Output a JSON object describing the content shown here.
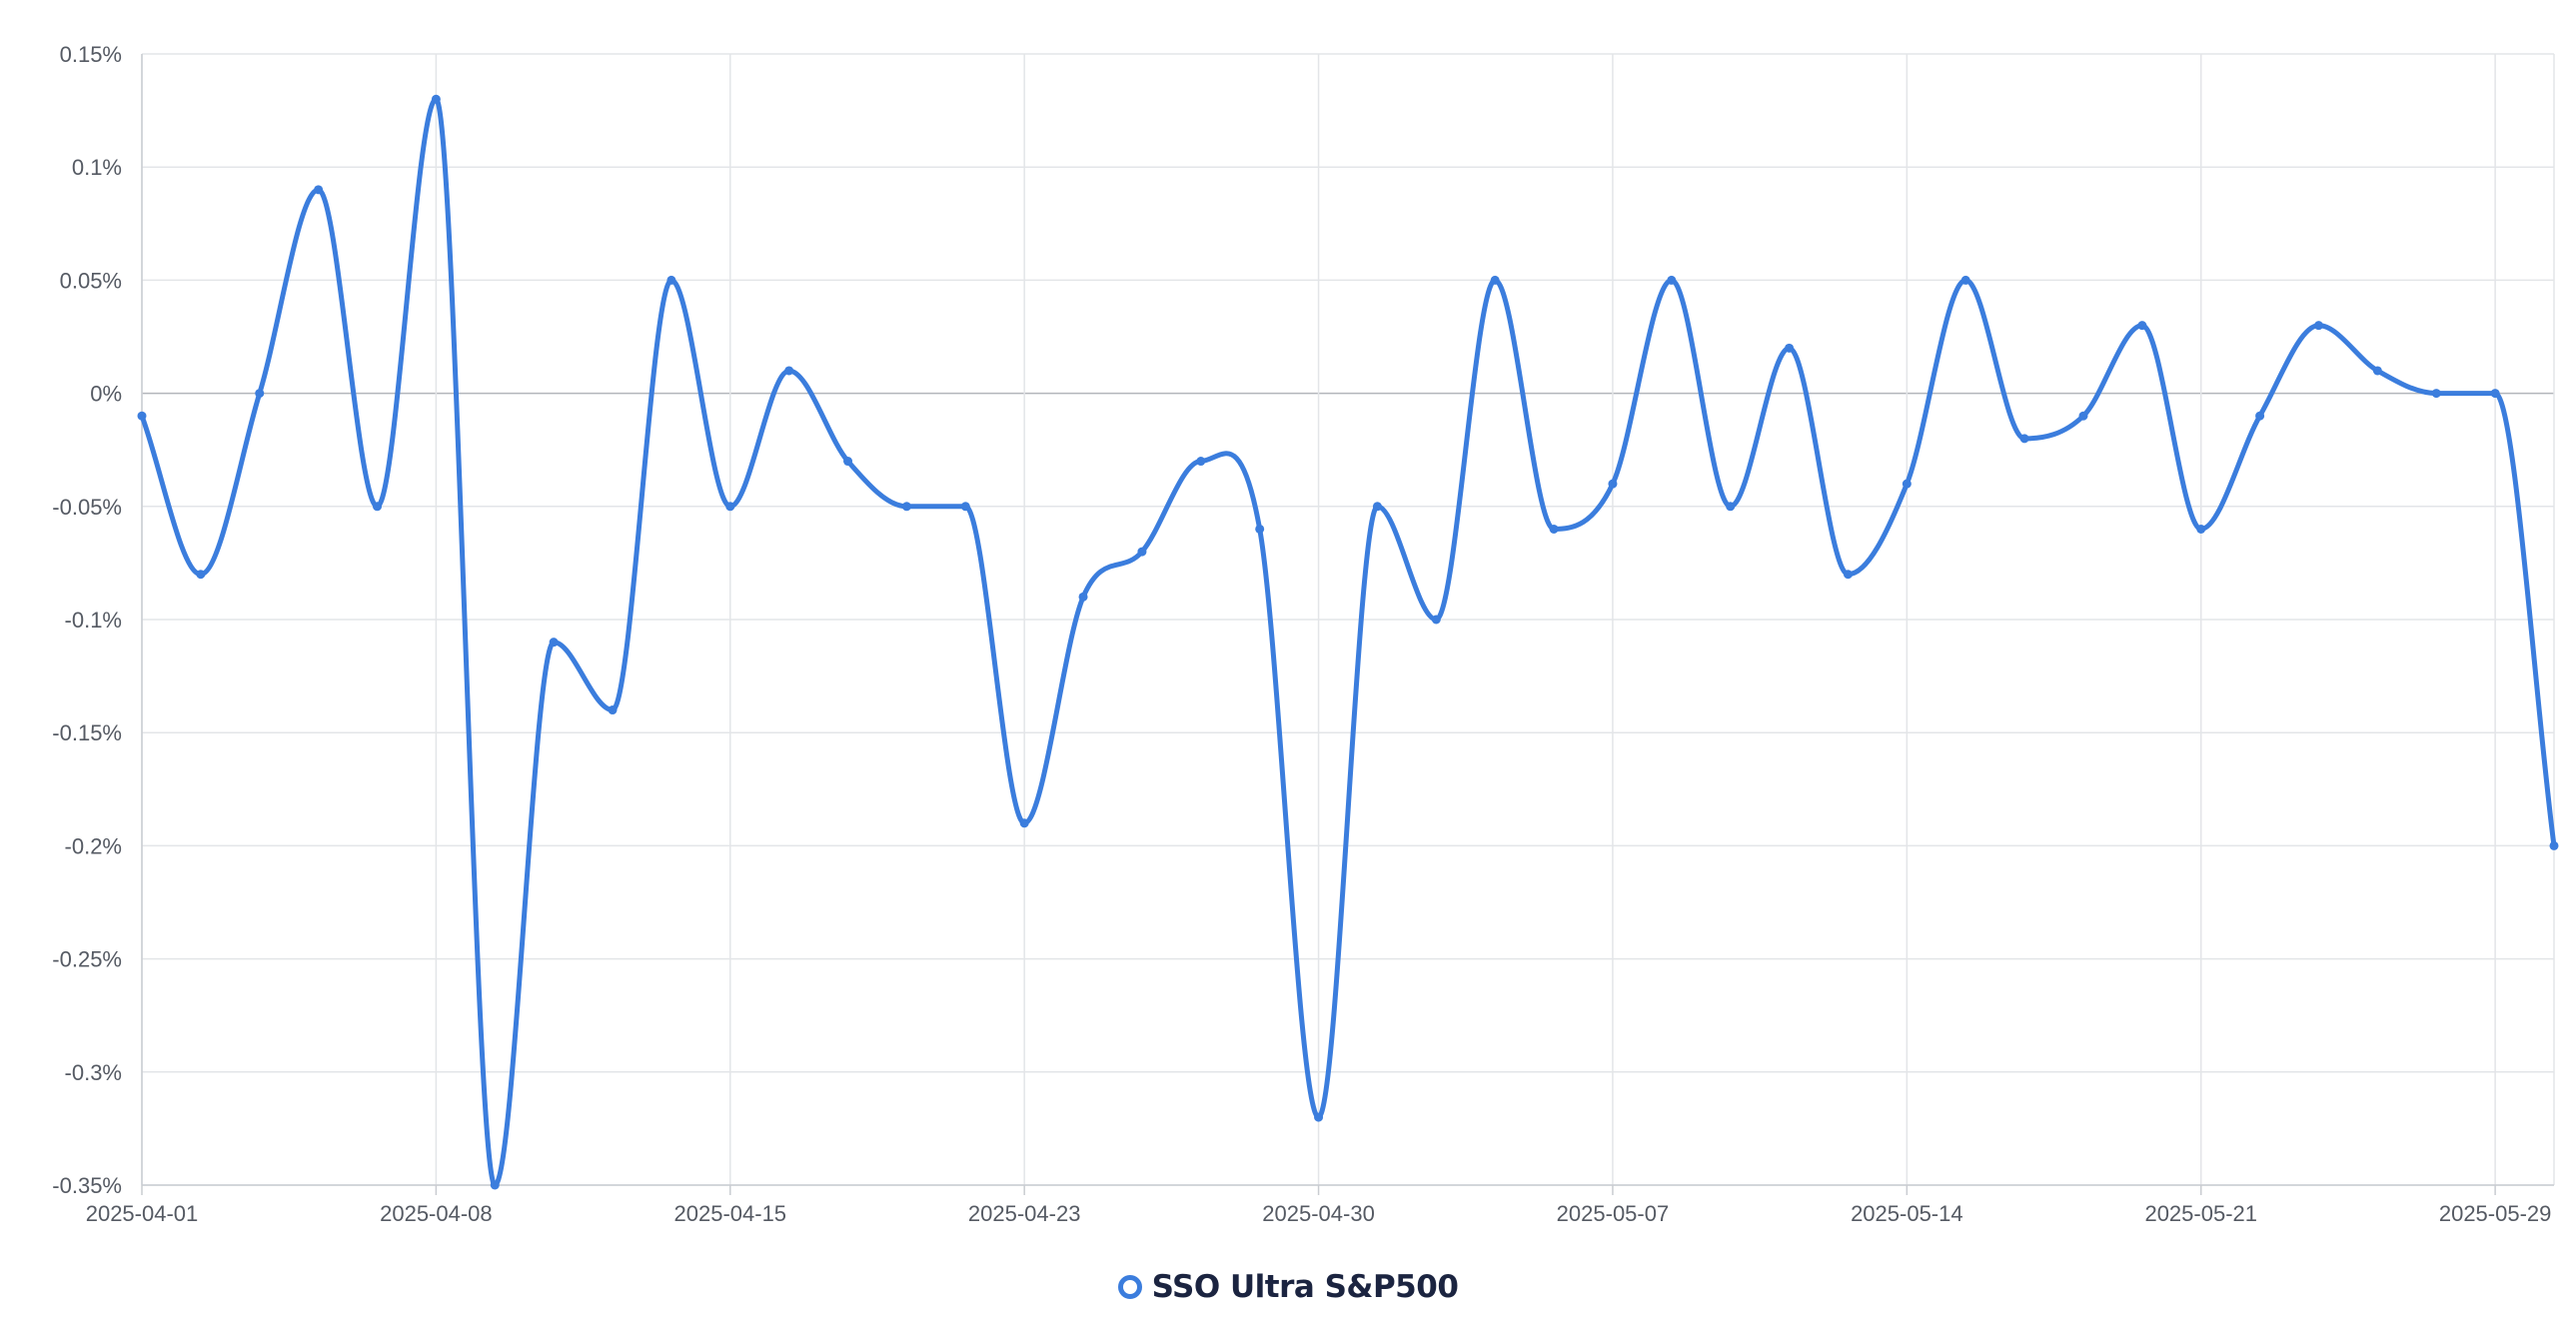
{
  "chart_data": {
    "type": "line",
    "title": "",
    "xlabel": "",
    "ylabel": "",
    "ylim": [
      -0.35,
      0.15
    ],
    "y_ticks": [
      "0.15%",
      "0.1%",
      "0.05%",
      "0%",
      "-0.05%",
      "-0.1%",
      "-0.15%",
      "-0.2%",
      "-0.25%",
      "-0.3%",
      "-0.35%"
    ],
    "y_tick_values": [
      0.15,
      0.1,
      0.05,
      0,
      -0.05,
      -0.1,
      -0.15,
      -0.2,
      -0.25,
      -0.3,
      -0.35
    ],
    "x_ticks": [
      "2025-04-01",
      "2025-04-08",
      "2025-04-15",
      "2025-04-23",
      "2025-04-30",
      "2025-05-07",
      "2025-05-14",
      "2025-05-21",
      "2025-05-29"
    ],
    "grid": true,
    "legend_position": "bottom-center",
    "line_color": "#3b7ddd",
    "series": [
      {
        "name": "SSO Ultra S&P500",
        "values": [
          -0.01,
          -0.08,
          0.0,
          0.09,
          -0.05,
          0.13,
          -0.35,
          -0.11,
          -0.14,
          0.05,
          -0.05,
          0.01,
          -0.03,
          -0.05,
          -0.05,
          -0.19,
          -0.09,
          -0.07,
          -0.03,
          -0.06,
          -0.32,
          -0.05,
          -0.1,
          0.05,
          -0.06,
          -0.04,
          0.05,
          -0.05,
          0.02,
          -0.08,
          -0.04,
          0.05,
          -0.02,
          -0.01,
          0.03,
          -0.06,
          -0.01,
          0.03,
          0.01,
          0.0,
          0.0,
          -0.2
        ]
      }
    ]
  }
}
